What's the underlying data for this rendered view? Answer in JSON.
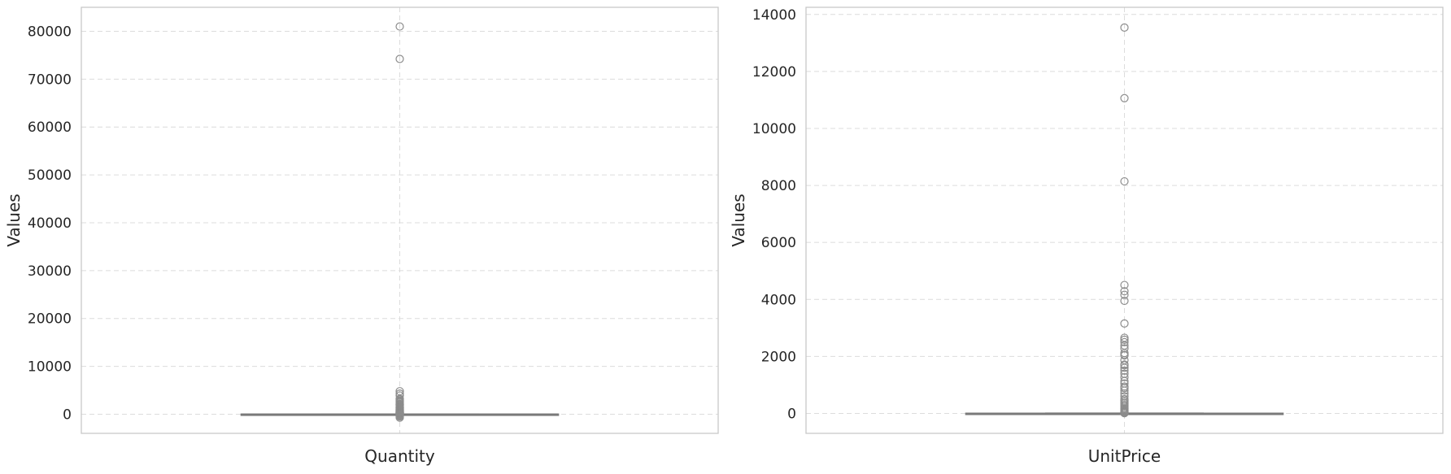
{
  "chart_data": [
    {
      "type": "box",
      "xlabel": "Quantity",
      "ylabel": "Values",
      "ylim": [
        -4000,
        85000
      ],
      "yticks": [
        0,
        10000,
        20000,
        30000,
        40000,
        50000,
        60000,
        70000,
        80000
      ],
      "grid": true,
      "box": {
        "q1": 1,
        "median": 6,
        "q3": 12,
        "whisker_low": -12,
        "whisker_high": 27
      },
      "outliers": [
        80995,
        74215,
        4800,
        4300,
        3906,
        3186,
        3114,
        2880,
        2700,
        2592,
        2400,
        2160,
        2100,
        2000,
        1992,
        1930,
        1824,
        1600,
        1500,
        1440,
        1412,
        1350,
        1300,
        1200,
        1152,
        1056,
        1000,
        960,
        900,
        864,
        800,
        768,
        720,
        672,
        640,
        600,
        576,
        500,
        480,
        432,
        400,
        384,
        360,
        300,
        288,
        240,
        200,
        192,
        160,
        150,
        144,
        120,
        100,
        96,
        80,
        72,
        64,
        60,
        50,
        48,
        40,
        36,
        32,
        28,
        -24,
        -36,
        -48,
        -72,
        -100,
        -144,
        -200,
        -300,
        -480,
        -720
      ]
    },
    {
      "type": "box",
      "xlabel": "UnitPrice",
      "ylabel": "Values",
      "ylim": [
        -700,
        14250
      ],
      "yticks": [
        0,
        2000,
        4000,
        6000,
        8000,
        10000,
        12000,
        14000
      ],
      "grid": true,
      "box": {
        "q1": 1.25,
        "median": 2.08,
        "q3": 4.13,
        "whisker_low": 0,
        "whisker_high": 8.45
      },
      "outliers": [
        13541.33,
        11062.06,
        8142.75,
        4505.17,
        4287.63,
        4161.06,
        3949.32,
        3155.95,
        2653.95,
        2583.76,
        2500,
        2382.92,
        2282.5,
        2118.74,
        2053.07,
        2033.1,
        1867.86,
        1715.85,
        1687.17,
        1599.26,
        1500.36,
        1390.13,
        1270.06,
        1136.3,
        1050.15,
        940.87,
        887.52,
        800,
        700,
        600,
        500,
        450,
        400,
        350,
        300,
        250,
        200,
        165,
        130,
        100,
        75,
        50,
        40,
        30,
        25,
        20,
        16.95,
        15,
        12.75,
        10.95,
        9.95
      ]
    }
  ]
}
